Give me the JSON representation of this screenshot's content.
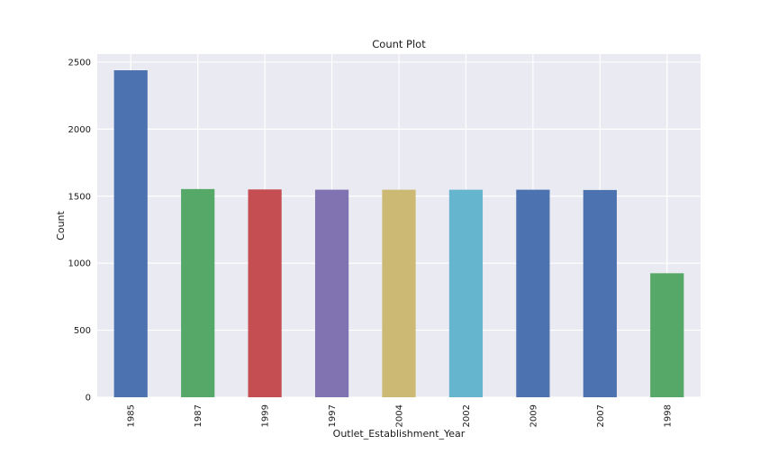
{
  "chart_data": {
    "type": "bar",
    "title": "Count Plot",
    "xlabel": "Outlet_Establishment_Year",
    "ylabel": "Count",
    "categories": [
      "1985",
      "1987",
      "1999",
      "1997",
      "2004",
      "2002",
      "2009",
      "2007",
      "1998"
    ],
    "values": [
      2439,
      1553,
      1550,
      1548,
      1548,
      1548,
      1548,
      1546,
      925
    ],
    "ylim": [
      0,
      2560
    ],
    "yticks": [
      "0",
      "500",
      "1000",
      "1500",
      "2000",
      "2500"
    ],
    "grid": true,
    "legend": "none",
    "colors": [
      "#4c72b0",
      "#55a868",
      "#c44e52",
      "#8172b2",
      "#ccb974",
      "#64b5cd",
      "#4c72b0",
      "#4c72b0",
      "#55a868"
    ],
    "background": "#eaeaf2",
    "gridColor": "#ffffff"
  }
}
